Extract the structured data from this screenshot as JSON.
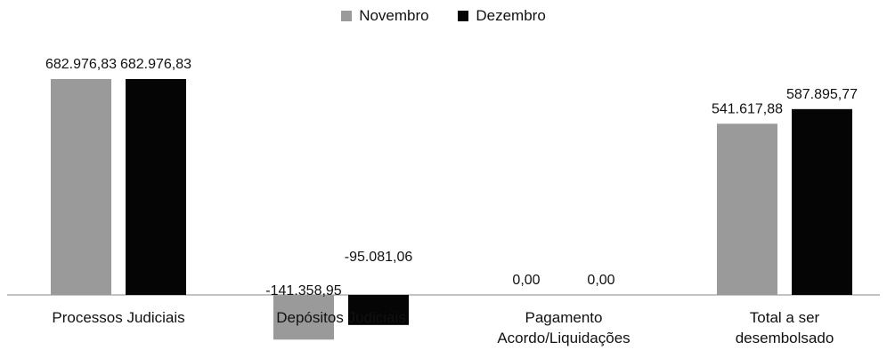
{
  "chart_data": {
    "type": "bar",
    "categories": [
      "Processos Judiciais",
      "Depósitos Judiciais",
      "Pagamento Acordo/Liquidações",
      "Total a ser desembolsado"
    ],
    "category_lines": [
      [
        "Processos Judiciais"
      ],
      [
        "Depósitos Judiciais"
      ],
      [
        "Pagamento",
        "Acordo/Liquidações"
      ],
      [
        "Total a ser",
        "desembolsado"
      ]
    ],
    "series": [
      {
        "name": "Novembro",
        "values": [
          682976.83,
          -141358.95,
          0.0,
          541617.88
        ],
        "labels": [
          "682.976,83",
          "-141.358,95",
          "0,00",
          "541.617,88"
        ],
        "color": "#9a9a9a"
      },
      {
        "name": "Dezembro",
        "values": [
          682976.83,
          -95081.06,
          0.0,
          587895.77
        ],
        "labels": [
          "682.976,83",
          "-95.081,06",
          "0,00",
          "587.895,77"
        ],
        "color": "#050505"
      }
    ],
    "title": "",
    "xlabel": "",
    "ylabel": "",
    "legend_position": "top-center",
    "grid": false
  },
  "colors": {
    "novembro": "#9a9a9a",
    "dezembro": "#050505",
    "axis": "#8a8a8a"
  }
}
